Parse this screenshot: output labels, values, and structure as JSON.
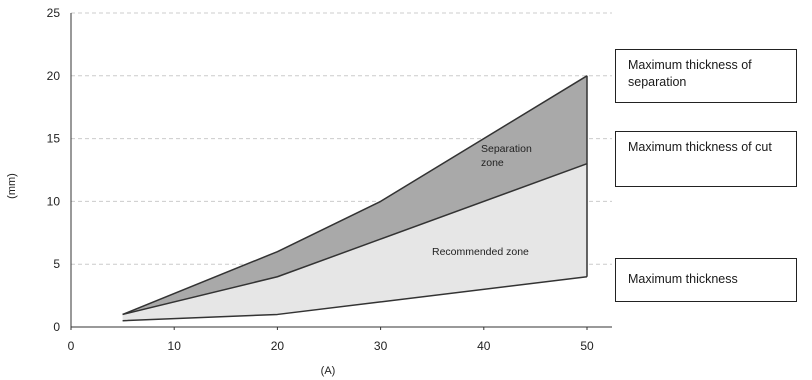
{
  "chart_data": {
    "type": "area",
    "x": [
      5,
      20,
      30,
      50
    ],
    "series": [
      {
        "name": "Maximum thickness of separation",
        "values": [
          1,
          6,
          10,
          20
        ]
      },
      {
        "name": "Maximum thickness of cut",
        "values": [
          1,
          4,
          7,
          13
        ]
      },
      {
        "name": "Maximum thickness",
        "values": [
          0.5,
          1,
          2,
          4
        ]
      }
    ],
    "xlabel": "(A)",
    "ylabel": "(mm)",
    "xlim": [
      0,
      50
    ],
    "ylim": [
      0,
      25
    ],
    "xticks": [
      "0",
      "10",
      "20",
      "30",
      "40",
      "50"
    ],
    "yticks": [
      "0",
      "5",
      "10",
      "15",
      "20",
      "25"
    ],
    "grid": "horizontal dashed",
    "annotations": [
      "Separation zone",
      "Recommended zone"
    ],
    "annotation_lines": [
      [
        "Separation",
        "zone"
      ],
      [
        "Recommended zone"
      ]
    ],
    "legend": [
      "Maximum thickness of separation",
      "Maximum thickness of cut",
      "Maximum thickness"
    ],
    "legend_placement": "right",
    "colors": {
      "separation_zone": "#a9a9a9",
      "recommended_zone": "#e6e6e6",
      "line": "#333333",
      "grid": "#cccccc"
    }
  }
}
